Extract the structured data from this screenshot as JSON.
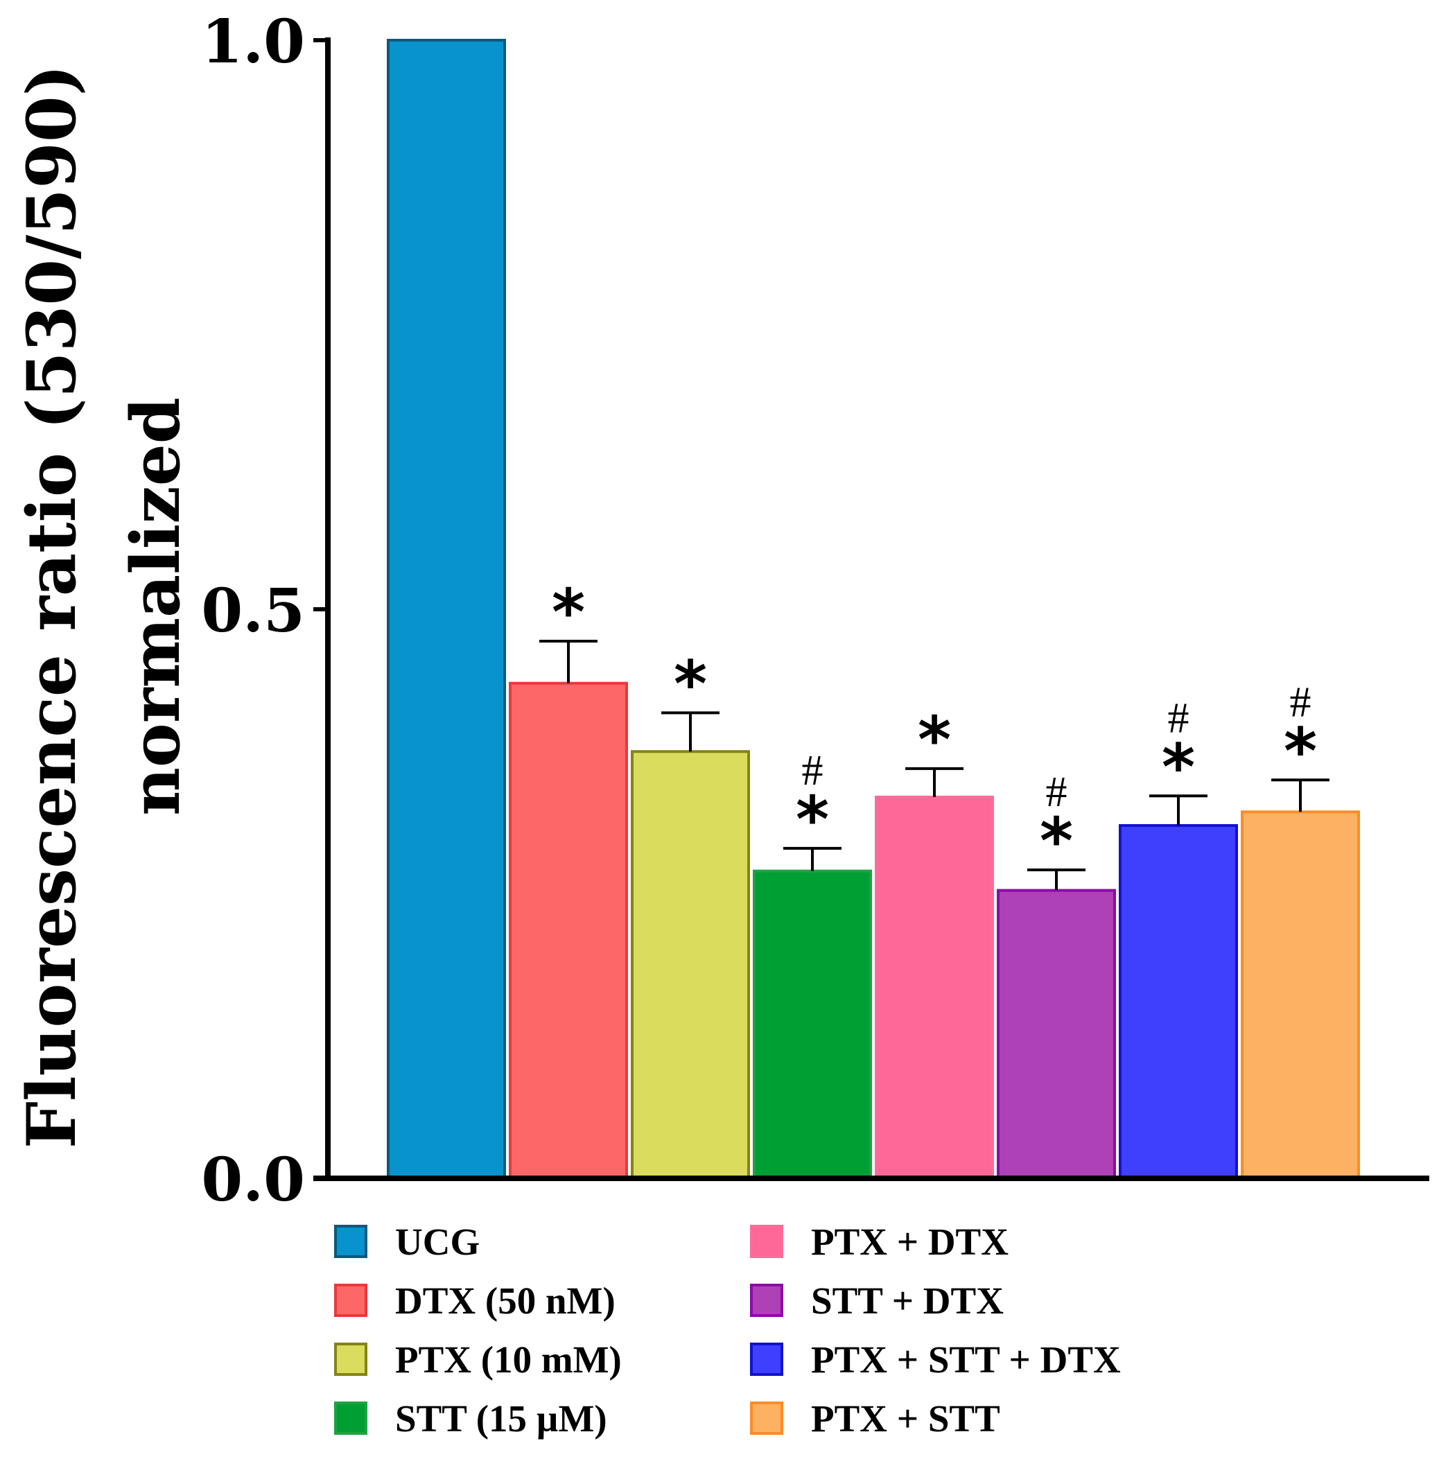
{
  "chart_data": {
    "type": "bar",
    "title": "",
    "xlabel": "",
    "ylabel_line1": "Fluorescence ratio (530/590)",
    "ylabel_line2": "normalized",
    "ylim": [
      0,
      1.0
    ],
    "yticks": [
      "0.0",
      "0.5",
      "1.0"
    ],
    "categories": [
      "UCG",
      "DTX (50 nM)",
      "PTX (10 mM)",
      "STT (15 µM)",
      "PTX + DTX",
      "STT + DTX",
      "PTX + STT + DTX",
      "PTX + STT"
    ],
    "values": [
      1.0,
      0.435,
      0.375,
      0.27,
      0.335,
      0.253,
      0.31,
      0.322
    ],
    "errors": [
      0.0,
      0.037,
      0.034,
      0.02,
      0.025,
      0.018,
      0.026,
      0.028
    ],
    "annotations": [
      {
        "category": "DTX (50 nM)",
        "star": "*",
        "hash": ""
      },
      {
        "category": "PTX (10 mM)",
        "star": "*",
        "hash": ""
      },
      {
        "category": "STT (15 µM)",
        "star": "*",
        "hash": "#"
      },
      {
        "category": "PTX + DTX",
        "star": "*",
        "hash": ""
      },
      {
        "category": "STT + DTX",
        "star": "*",
        "hash": "#"
      },
      {
        "category": "PTX + STT + DTX",
        "star": "*",
        "hash": "#"
      },
      {
        "category": "PTX + STT",
        "star": "*",
        "hash": "#"
      }
    ],
    "fill_colors": [
      "#0893cf",
      "#fe6767",
      "#d9dc5c",
      "#009f34",
      "#fe6899",
      "#ae41b6",
      "#3f3ffe",
      "#fdb263"
    ],
    "edge_colors": [
      "#0a5a7a",
      "#e8393d",
      "#848415",
      "#1ea244",
      "#ff6b99",
      "#8b0ca6",
      "#1212cf",
      "#fd8c26"
    ],
    "legend_position": "bottom"
  },
  "legend": {
    "items": [
      {
        "label": "UCG"
      },
      {
        "label": "DTX (50 nM)"
      },
      {
        "label": "PTX (10 mM)"
      },
      {
        "label": "STT (15 µM)"
      },
      {
        "label": "PTX + DTX"
      },
      {
        "label": "STT + DTX"
      },
      {
        "label": "PTX + STT + DTX"
      },
      {
        "label": "PTX + STT"
      }
    ]
  }
}
